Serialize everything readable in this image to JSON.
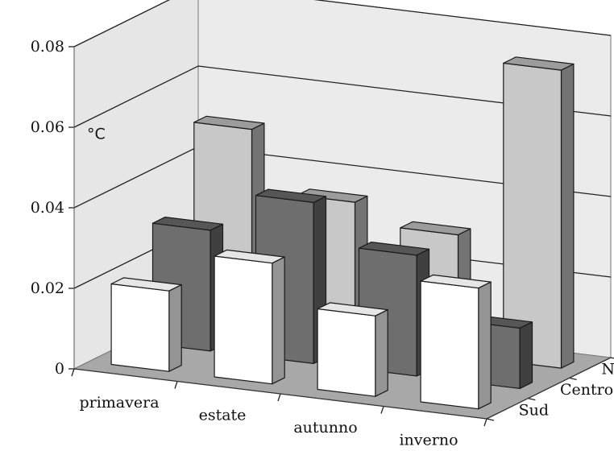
{
  "chart_data": {
    "type": "bar",
    "subtype": "3d-clustered-depth",
    "ylabel": "°C",
    "ylim": [
      0,
      0.08
    ],
    "yticks": [
      0,
      0.02,
      0.04,
      0.06,
      0.08
    ],
    "ytick_labels": [
      "0",
      "0.02",
      "0.04",
      "0.06",
      "0.08"
    ],
    "categories": [
      "primavera",
      "estate",
      "autunno",
      "inverno"
    ],
    "grid": true,
    "series": [
      {
        "name": "Nord",
        "color": "#c8c8c8",
        "values": [
          0.05,
          0.035,
          0.03,
          0.074
        ]
      },
      {
        "name": "Centro",
        "color": "#6e6e6e",
        "values": [
          0.03,
          0.04,
          0.03,
          0.015
        ]
      },
      {
        "name": "Sud",
        "color": "#ffffff",
        "values": [
          0.02,
          0.03,
          0.02,
          0.03
        ]
      }
    ]
  }
}
